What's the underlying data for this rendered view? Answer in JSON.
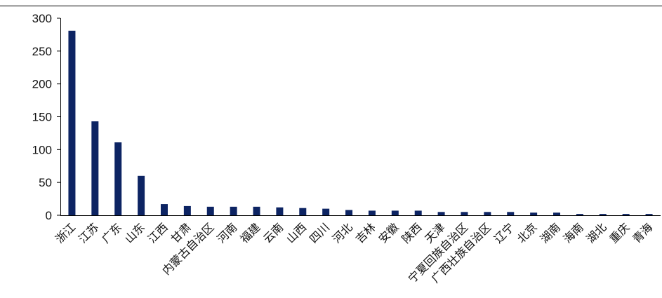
{
  "chart_data": {
    "type": "bar",
    "title": "",
    "xlabel": "",
    "ylabel": "",
    "ylim": [
      0,
      300
    ],
    "yticks": [
      0,
      50,
      100,
      150,
      200,
      250,
      300
    ],
    "grid": false,
    "legend": "none",
    "bar_color": "#0d2463",
    "categories": [
      "浙江",
      "江苏",
      "广东",
      "山东",
      "江西",
      "甘肃",
      "内蒙古自治区",
      "河南",
      "福建",
      "云南",
      "山西",
      "四川",
      "河北",
      "吉林",
      "安徽",
      "陕西",
      "天津",
      "宁夏回族自治区",
      "广西壮族自治区",
      "辽宁",
      "北京",
      "湖南",
      "海南",
      "湖北",
      "重庆",
      "青海"
    ],
    "values": [
      281,
      143,
      111,
      60,
      17,
      14,
      13,
      13,
      13,
      12,
      11,
      10,
      8,
      7,
      7,
      7,
      5,
      5,
      5,
      5,
      4,
      4,
      2,
      2,
      2,
      2
    ]
  }
}
